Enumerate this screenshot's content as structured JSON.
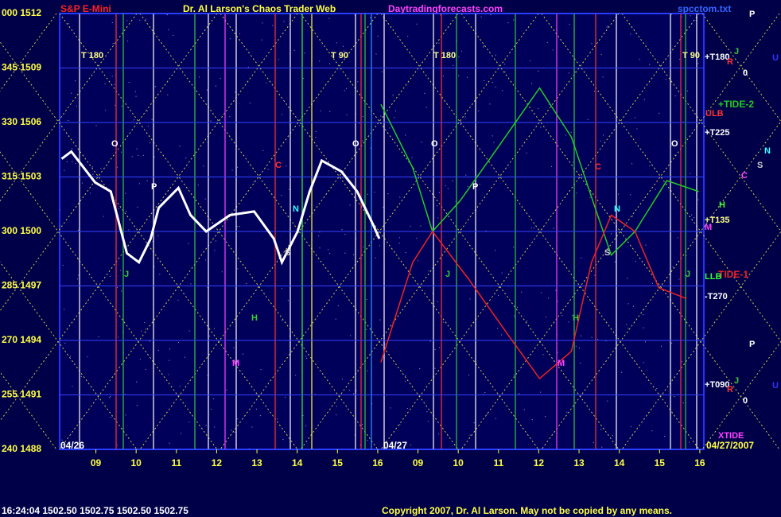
{
  "chart_data": {
    "type": "line",
    "title": "Dr. Al Larson's Chaos Trader Web",
    "instrument": "S&P E-Mini",
    "site": "Daytradingforecasts.com",
    "file": "spcctom.txt",
    "quote": "16:24:04  1502.50  1502.75  1502.50  1502.75",
    "copyright": "Copyright 2007, Dr. Al Larson. May not be copied by any means.",
    "dates": [
      "04/26",
      "04/27",
      "04/27/2007"
    ],
    "annotations": [
      "T 180",
      "T 90",
      "T 180",
      "T 90",
      "+T180",
      "ULB",
      "+T225",
      "+T135",
      "LLB",
      "-T270",
      "+T090",
      "XTIDE",
      "O",
      "P",
      "C",
      "N",
      "S",
      "J",
      "H",
      "M",
      "O",
      "O",
      "P",
      "J",
      "C",
      "N",
      "S",
      "H",
      "M",
      "O",
      "J",
      "H",
      "C",
      "S",
      "N",
      "M",
      "P",
      "J",
      "R",
      "0",
      "U",
      "P",
      "J",
      "R",
      "0",
      "U"
    ],
    "xlim": [
      8.1,
      24.1
    ],
    "xticks": [
      {
        "value": 9,
        "label": "09"
      },
      10,
      11,
      12,
      13,
      14,
      15,
      16,
      {
        "value": 17,
        "label": "09"
      },
      {
        "value": 18,
        "label": "10"
      },
      {
        "value": 19,
        "label": "11"
      },
      {
        "value": 20,
        "label": "12"
      },
      {
        "value": 21,
        "label": "13"
      },
      {
        "value": 22,
        "label": "14"
      },
      {
        "value": 23,
        "label": "15"
      },
      {
        "value": 24,
        "label": "16"
      }
    ],
    "ylim": [
      1488,
      1512
    ],
    "yticks": [
      {
        "value": 1512,
        "label": "000 1512"
      },
      {
        "value": 1509,
        "label": "345 1509"
      },
      {
        "value": 1506,
        "label": "330 1506"
      },
      {
        "value": 1503,
        "label": "315 1503"
      },
      {
        "value": 1500,
        "label": "300 1500"
      },
      {
        "value": 1497,
        "label": "285 1497"
      },
      {
        "value": 1494,
        "label": "270 1494"
      },
      {
        "value": 1491,
        "label": "255 1491"
      },
      {
        "value": 1488,
        "label": "240 1488"
      }
    ],
    "grid": true,
    "series": [
      {
        "name": "S&P E-Mini",
        "color": "#ffffff",
        "x": [
          8.15,
          8.39,
          8.98,
          9.37,
          9.77,
          10.07,
          10.36,
          10.56,
          11.05,
          11.35,
          11.74,
          12.33,
          12.93,
          13.42,
          13.62,
          14.01,
          14.31,
          14.61,
          15.1,
          15.49,
          15.88,
          16.04
        ],
        "values": [
          1504.0,
          1504.4,
          1502.7,
          1502.2,
          1498.8,
          1498.3,
          1499.6,
          1501.3,
          1502.4,
          1500.9,
          1500.0,
          1500.9,
          1501.1,
          1499.6,
          1498.3,
          1500.0,
          1502.2,
          1503.9,
          1503.3,
          1502.2,
          1500.4,
          1499.6
        ]
      },
      {
        "name": "+TIDE-2",
        "color": "#22cc22",
        "x": [
          16.08,
          16.87,
          17.36,
          18.05,
          19.04,
          20.02,
          20.81,
          21.4,
          21.8,
          22.39,
          23.18,
          23.97
        ],
        "values": [
          1507.0,
          1503.5,
          1500.0,
          1501.7,
          1504.8,
          1507.9,
          1505.2,
          1501.3,
          1498.7,
          1500.0,
          1502.8,
          1502.2
        ]
      },
      {
        "name": "TIDE-1",
        "color": "#ee2222",
        "x": [
          16.08,
          16.87,
          17.36,
          18.25,
          19.24,
          20.02,
          20.81,
          21.31,
          21.8,
          22.39,
          22.98,
          23.67
        ],
        "values": [
          1492.8,
          1498.3,
          1500.0,
          1497.4,
          1494.3,
          1491.9,
          1493.4,
          1498.3,
          1500.9,
          1500.0,
          1496.9,
          1496.3
        ]
      }
    ]
  }
}
